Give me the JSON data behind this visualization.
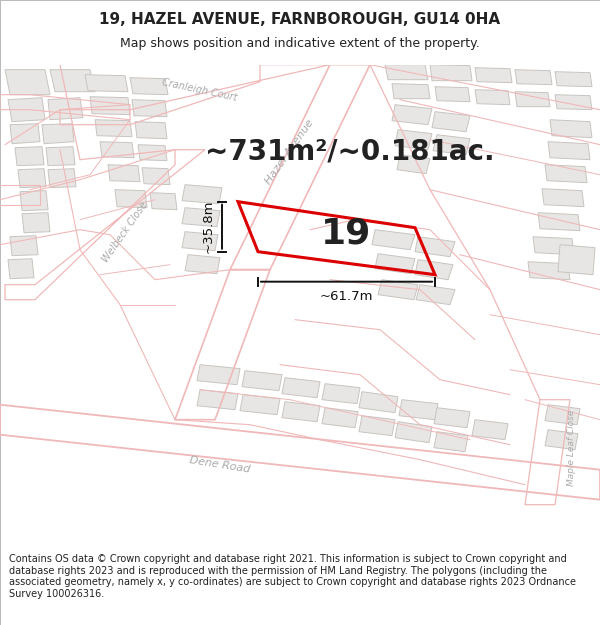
{
  "title": "19, HAZEL AVENUE, FARNBOROUGH, GU14 0HA",
  "subtitle": "Map shows position and indicative extent of the property.",
  "area_text": "~731m²/~0.181ac.",
  "number_label": "19",
  "dim_width": "~61.7m",
  "dim_height": "~35.8m",
  "footer": "Contains OS data © Crown copyright and database right 2021. This information is subject to Crown copyright and database rights 2023 and is reproduced with the permission of HM Land Registry. The polygons (including the associated geometry, namely x, y co-ordinates) are subject to Crown copyright and database rights 2023 Ordnance Survey 100026316.",
  "map_bg": "#ffffff",
  "road_stroke": "#f0b8b8",
  "road_lw": 1.0,
  "bld_fill": "#e8e6e4",
  "bld_edge": "#c8c4c0",
  "plot_color": "#dd0000",
  "plot_lw": 2.2,
  "text_color": "#222222",
  "dim_color": "#111111",
  "street_label_color": "#aaaaaa",
  "title_fontsize": 11,
  "subtitle_fontsize": 9,
  "area_fontsize": 20,
  "number_fontsize": 26,
  "dim_fontsize": 9.5,
  "footer_fontsize": 7.0,
  "street_fontsize": 8.0
}
